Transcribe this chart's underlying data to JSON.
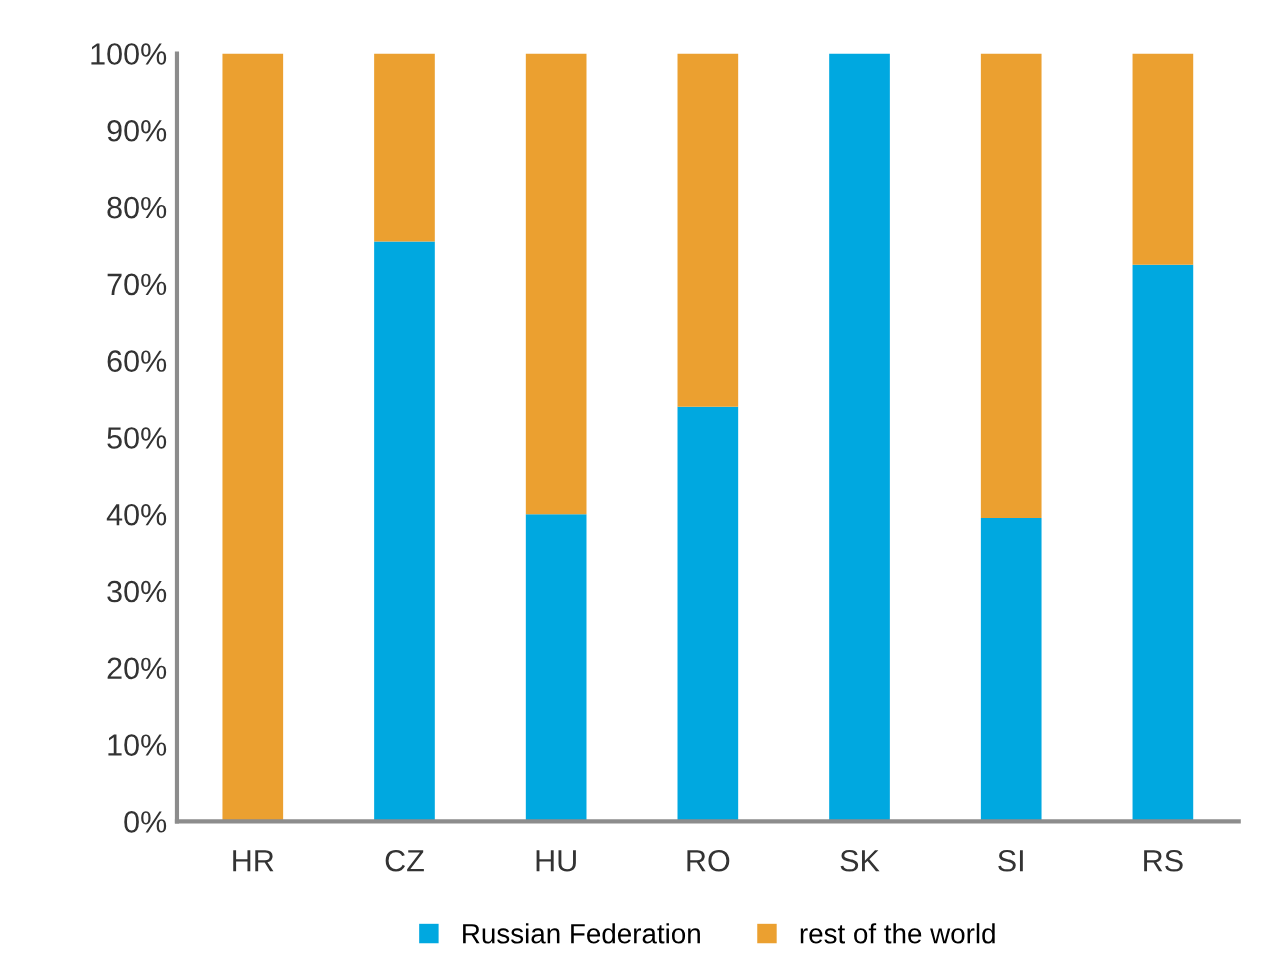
{
  "chart_data": {
    "type": "bar",
    "stacked": true,
    "categories": [
      "HR",
      "CZ",
      "HU",
      "RO",
      "SK",
      "SI",
      "RS"
    ],
    "series": [
      {
        "name": "Russian Federation",
        "color": "#00a8e0",
        "values": [
          0,
          75.5,
          40,
          54,
          100,
          39.5,
          72.5
        ]
      },
      {
        "name": "rest of the world",
        "color": "#eba030",
        "values": [
          100,
          24.5,
          60,
          46,
          0,
          60.5,
          27.5
        ]
      }
    ],
    "ylim": [
      0,
      100
    ],
    "yticks": [
      {
        "value": 0,
        "label": "0%"
      },
      {
        "value": 10,
        "label": "10%"
      },
      {
        "value": 20,
        "label": "20%"
      },
      {
        "value": 30,
        "label": "30%"
      },
      {
        "value": 40,
        "label": "40%"
      },
      {
        "value": 50,
        "label": "50%"
      },
      {
        "value": 60,
        "label": "60%"
      },
      {
        "value": 70,
        "label": "70%"
      },
      {
        "value": 80,
        "label": "80%"
      },
      {
        "value": 90,
        "label": "90%"
      },
      {
        "value": 100,
        "label": "100%"
      }
    ],
    "grid": false,
    "legend": "bottom"
  }
}
